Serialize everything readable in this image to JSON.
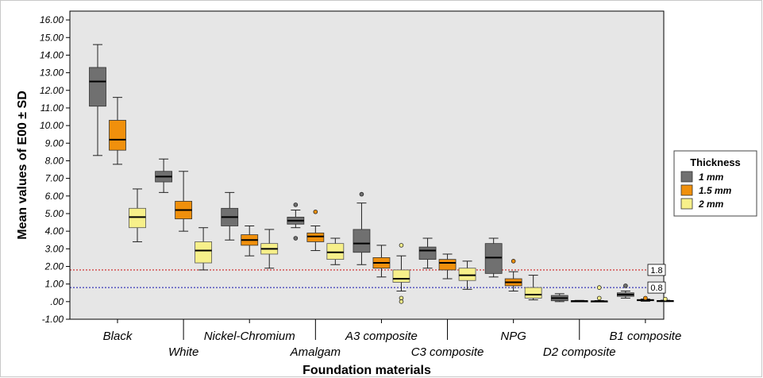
{
  "chart_data": {
    "type": "boxplot",
    "xlabel": "Foundation materials",
    "ylabel": "Mean values of E00 ± SD",
    "ylim": [
      -1,
      16.5
    ],
    "y_ticks": [
      "-1.00",
      ".00",
      "1.00",
      "2.00",
      "3.00",
      "4.00",
      "5.00",
      "6.00",
      "7.00",
      "8.00",
      "9.00",
      "10.00",
      "11.00",
      "12.00",
      "13.00",
      "14.00",
      "15.00",
      "16.00"
    ],
    "y_tick_values": [
      -1,
      0,
      1,
      2,
      3,
      4,
      5,
      6,
      7,
      8,
      9,
      10,
      11,
      12,
      13,
      14,
      15,
      16
    ],
    "categories": [
      "Black",
      "White",
      "Nickel-Chromium",
      "Amalgam",
      "A3 composite",
      "C3 composite",
      "NPG",
      "D2 composite",
      "B1 composite"
    ],
    "legend": {
      "title": "Thickness",
      "placement": "right",
      "entries": [
        "1 mm",
        "1.5 mm",
        "2 mm"
      ]
    },
    "colors": [
      "#707070",
      "#f0900c",
      "#f7f08a"
    ],
    "reference_lines": [
      {
        "value": 1.8,
        "label": "1.8",
        "color": "#d02020"
      },
      {
        "value": 0.8,
        "label": "0.8",
        "color": "#3838b8"
      }
    ],
    "series": [
      {
        "name": "1 mm",
        "boxes": [
          {
            "min": 8.3,
            "q1": 11.1,
            "median": 12.5,
            "q3": 13.3,
            "max": 14.6,
            "outliers": []
          },
          {
            "min": 6.2,
            "q1": 6.8,
            "median": 7.1,
            "q3": 7.4,
            "max": 8.1,
            "outliers": []
          },
          {
            "min": 3.5,
            "q1": 4.3,
            "median": 4.8,
            "q3": 5.3,
            "max": 6.2,
            "outliers": []
          },
          {
            "min": 4.2,
            "q1": 4.4,
            "median": 4.6,
            "q3": 4.8,
            "max": 5.2,
            "outliers": [
              5.5,
              3.6
            ]
          },
          {
            "min": 2.1,
            "q1": 2.8,
            "median": 3.3,
            "q3": 4.1,
            "max": 5.6,
            "outliers": [
              6.1
            ]
          },
          {
            "min": 1.9,
            "q1": 2.4,
            "median": 2.9,
            "q3": 3.1,
            "max": 3.6,
            "outliers": []
          },
          {
            "min": 1.4,
            "q1": 1.6,
            "median": 2.5,
            "q3": 3.3,
            "max": 3.6,
            "outliers": []
          },
          {
            "min": 0.0,
            "q1": 0.05,
            "median": 0.2,
            "q3": 0.35,
            "max": 0.45,
            "outliers": []
          },
          {
            "min": 0.2,
            "q1": 0.3,
            "median": 0.4,
            "q3": 0.5,
            "max": 0.6,
            "outliers": [
              0.9
            ]
          }
        ]
      },
      {
        "name": "1.5 mm",
        "boxes": [
          {
            "min": 7.8,
            "q1": 8.6,
            "median": 9.2,
            "q3": 10.3,
            "max": 11.6,
            "outliers": []
          },
          {
            "min": 4.0,
            "q1": 4.7,
            "median": 5.2,
            "q3": 5.7,
            "max": 7.4,
            "outliers": []
          },
          {
            "min": 2.6,
            "q1": 3.2,
            "median": 3.5,
            "q3": 3.8,
            "max": 4.3,
            "outliers": []
          },
          {
            "min": 2.9,
            "q1": 3.4,
            "median": 3.7,
            "q3": 3.9,
            "max": 4.3,
            "outliers": [
              5.1
            ]
          },
          {
            "min": 1.4,
            "q1": 1.9,
            "median": 2.2,
            "q3": 2.5,
            "max": 3.2,
            "outliers": []
          },
          {
            "min": 1.3,
            "q1": 1.8,
            "median": 2.2,
            "q3": 2.4,
            "max": 2.7,
            "outliers": []
          },
          {
            "min": 0.6,
            "q1": 0.9,
            "median": 1.1,
            "q3": 1.3,
            "max": 1.7,
            "outliers": [
              2.3
            ]
          },
          {
            "min": 0.0,
            "q1": 0.01,
            "median": 0.03,
            "q3": 0.05,
            "max": 0.07,
            "outliers": []
          },
          {
            "min": 0.02,
            "q1": 0.05,
            "median": 0.08,
            "q3": 0.12,
            "max": 0.15,
            "outliers": [
              0.2
            ]
          }
        ]
      },
      {
        "name": "2 mm",
        "boxes": [
          {
            "min": 3.4,
            "q1": 4.2,
            "median": 4.8,
            "q3": 5.3,
            "max": 6.4,
            "outliers": []
          },
          {
            "min": 1.8,
            "q1": 2.2,
            "median": 2.9,
            "q3": 3.4,
            "max": 4.2,
            "outliers": []
          },
          {
            "min": 1.9,
            "q1": 2.7,
            "median": 3.0,
            "q3": 3.3,
            "max": 4.1,
            "outliers": []
          },
          {
            "min": 2.1,
            "q1": 2.4,
            "median": 2.8,
            "q3": 3.3,
            "max": 3.6,
            "outliers": []
          },
          {
            "min": 0.6,
            "q1": 1.1,
            "median": 1.3,
            "q3": 1.8,
            "max": 2.6,
            "outliers": [
              3.2,
              0.2,
              0.0
            ]
          },
          {
            "min": 0.7,
            "q1": 1.2,
            "median": 1.5,
            "q3": 1.9,
            "max": 2.3,
            "outliers": []
          },
          {
            "min": 0.1,
            "q1": 0.2,
            "median": 0.4,
            "q3": 0.8,
            "max": 1.5,
            "outliers": []
          },
          {
            "min": 0.0,
            "q1": 0.0,
            "median": 0.02,
            "q3": 0.04,
            "max": 0.06,
            "outliers": [
              0.2,
              0.8
            ]
          },
          {
            "min": 0.0,
            "q1": 0.02,
            "median": 0.04,
            "q3": 0.06,
            "max": 0.08,
            "outliers": [
              0.15
            ]
          }
        ]
      }
    ]
  }
}
